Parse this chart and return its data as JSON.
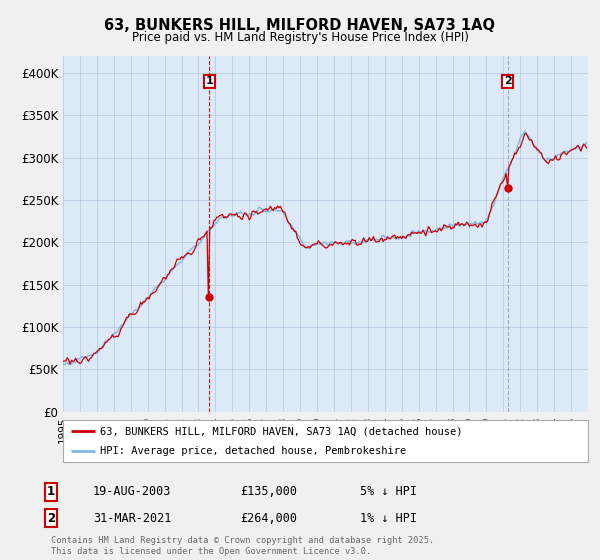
{
  "title_line1": "63, BUNKERS HILL, MILFORD HAVEN, SA73 1AQ",
  "title_line2": "Price paid vs. HM Land Registry's House Price Index (HPI)",
  "ylim": [
    0,
    420000
  ],
  "yticks": [
    0,
    50000,
    100000,
    150000,
    200000,
    250000,
    300000,
    350000,
    400000
  ],
  "ytick_labels": [
    "£0",
    "£50K",
    "£100K",
    "£150K",
    "£200K",
    "£250K",
    "£300K",
    "£350K",
    "£400K"
  ],
  "hpi_color": "#7eb8e8",
  "price_color": "#cc0000",
  "marker1_year": 2003.625,
  "marker1_price": 135000,
  "marker1_date_str": "19-AUG-2003",
  "marker1_pct": "5% ↓ HPI",
  "marker2_year": 2021.25,
  "marker2_price": 264000,
  "marker2_date_str": "31-MAR-2021",
  "marker2_pct": "1% ↓ HPI",
  "legend_line1": "63, BUNKERS HILL, MILFORD HAVEN, SA73 1AQ (detached house)",
  "legend_line2": "HPI: Average price, detached house, Pembrokeshire",
  "footnote": "Contains HM Land Registry data © Crown copyright and database right 2025.\nThis data is licensed under the Open Government Licence v3.0.",
  "background_color": "#f0f0f0",
  "plot_bg_color": "#dce9f7",
  "grid_color": "#b0c8e0",
  "marker1_vline_color": "#cc0000",
  "marker2_vline_color": "#8888aa"
}
